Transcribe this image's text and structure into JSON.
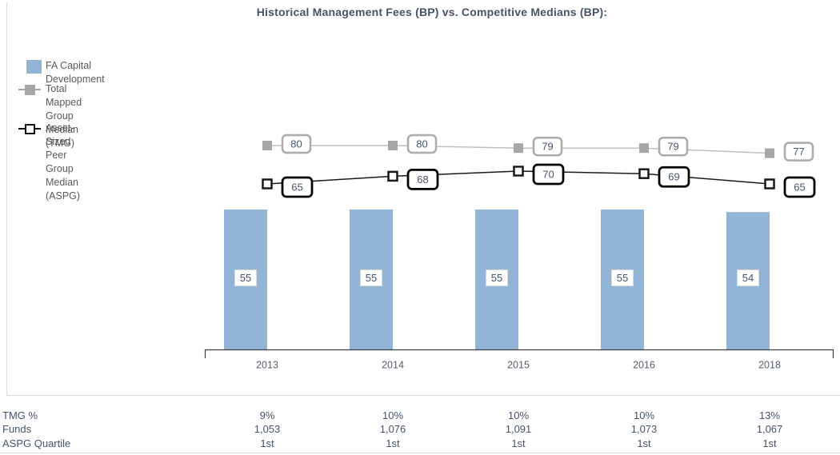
{
  "title": "Historical Management Fees (BP) vs. Competitive Medians (BP):",
  "colors": {
    "bar": "#92B4D7",
    "bar_label_border": "#DADADA",
    "tmg_line": "#BFBFBF",
    "tmg_marker": "#A6A6A6",
    "tmg_box_border": "#ABABAB",
    "aspg_line": "#1A1A1A",
    "aspg_box_border": "#000000",
    "text": "#44546A",
    "year_text": "#545E6B",
    "axis": "#3F3F3F",
    "divider": "#D9D9D9",
    "legend_text": "#595959"
  },
  "legend": {
    "items": [
      {
        "id": "fa-capital-development",
        "lines": [
          "FA Capital Development"
        ]
      },
      {
        "id": "tmg",
        "lines": [
          "Total Mapped Group",
          "Median (TMG)"
        ]
      },
      {
        "id": "aspg",
        "lines": [
          "Asset-Sized Peer Group",
          "Median (ASPG)"
        ]
      }
    ]
  },
  "chart_data": {
    "type": "combo-bar-line",
    "title": "Historical Management Fees (BP) vs. Competitive Medians (BP):",
    "categories": [
      "2013",
      "2014",
      "2015",
      "2016",
      "2018"
    ],
    "series": [
      {
        "name": "FA Capital Development",
        "type": "bar",
        "values": [
          55,
          55,
          55,
          55,
          54
        ]
      },
      {
        "name": "Total Mapped Group Median (TMG)",
        "type": "line",
        "values": [
          80,
          80,
          79,
          79,
          77
        ]
      },
      {
        "name": "Asset-Sized Peer Group Median (ASPG)",
        "type": "line",
        "values": [
          65,
          68,
          70,
          69,
          65
        ]
      }
    ],
    "data_labels_visible": true,
    "legend_position": "left",
    "grid": false
  },
  "table": {
    "rows": [
      {
        "label": "TMG %",
        "values": [
          "9%",
          "10%",
          "10%",
          "10%",
          "13%"
        ]
      },
      {
        "label": "Funds",
        "values": [
          "1,053",
          "1,076",
          "1,091",
          "1,073",
          "1,067"
        ]
      },
      {
        "label": "ASPG Quartile",
        "values": [
          "1st",
          "1st",
          "1st",
          "1st",
          "1st"
        ]
      }
    ]
  }
}
